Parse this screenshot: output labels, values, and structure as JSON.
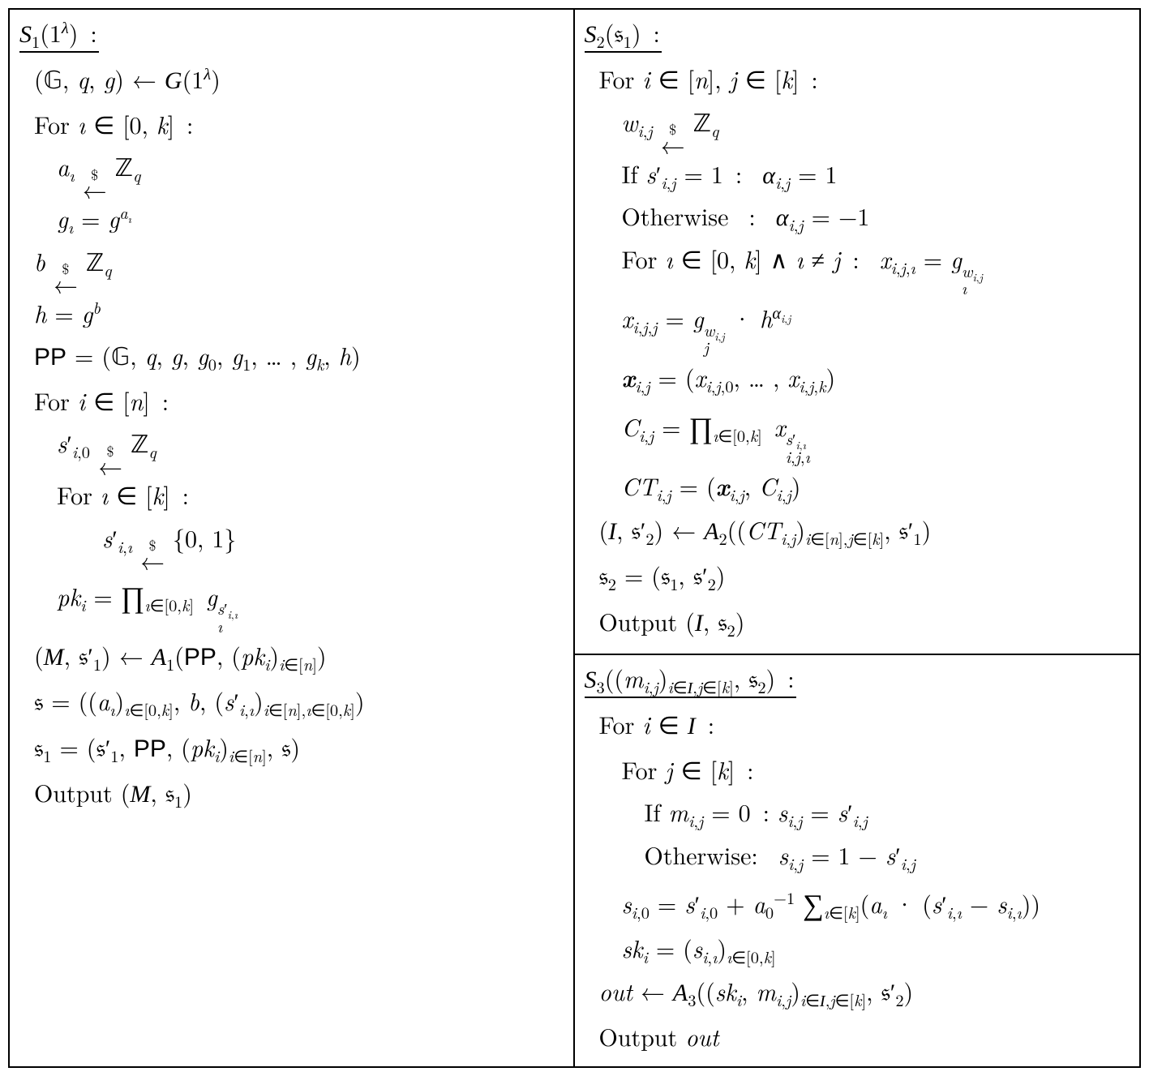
{
  "colors": {
    "border": "#000000",
    "bg": "#ffffff",
    "text": "#000000"
  },
  "fontsize_pt": 30,
  "left": {
    "header": "𝒮₁(1^λ) :",
    "lines": [
      "(&Gopf;, q, g) ← 𝒢(1^λ)",
      "For ı ∈ [0, k] :",
      "a_ı ←$ ℤ_q",
      "g_ı = g^{a_ı}",
      "b ←$ ℤ_q",
      "h = g^b",
      "PP = (&Gopf;, q, g, g₀, g₁, … , g_k, h)",
      "For i ∈ [n] :",
      "s'_{i,0} ←$ ℤ_q",
      "For ı ∈ [k] :",
      "s'_{i,ı} ←$ {0, 1}",
      "pk_i = ∏_{ı∈[0,k]} g_ı^{s'_{i,ı}}",
      "(ℳ, 𝔰'₁) ← 𝒜₁(PP, (pk_i)_{i∈[n]})",
      "𝔰 = ((a_ı)_{ı∈[0,k]}, b, (s'_{i,ı})_{i∈[n], ı∈[0,k]})",
      "𝔰₁ = (𝔰'₁, PP, (pk_i)_{i∈[n]}, 𝔰)",
      "Output (ℳ, 𝔰₁)"
    ]
  },
  "rightTop": {
    "header": "𝒮₂(𝔰₁) :",
    "lines": [
      "For i ∈ [n], j ∈ [k] :",
      "w_{i,j} ←$ ℤ_q",
      "If s'_{i,j} = 1 :  α_{i,j} = 1",
      "Otherwise  :  α_{i,j} = −1",
      "For ı ∈ [0, k] ∧ ı ≠ j :  x_{i,j,ı} = g_ı^{w_{i,j}}",
      "x_{i,j,j} = g_j^{w_{i,j}} · h^{α_{i,j}}",
      "𝒙_{i,j} = (x_{i,j,0}, … , x_{i,j,k})",
      "C_{i,j} = ∏_{ı∈[0,k]} x_{i,j,ı}^{s'_{i,ı}}",
      "CT_{i,j} = (𝒙_{i,j}, C_{i,j})",
      "(ℐ, 𝔰'₂) ← 𝒜₂((CT_{i,j})_{i∈[n], j∈[k]}, 𝔰'₁)",
      "𝔰₂ = (𝔰₁, 𝔰'₂)",
      "Output (ℐ, 𝔰₂)"
    ]
  },
  "rightBottom": {
    "header": "𝒮₃((m_{i,j})_{i∈ℐ, j∈[k]}, 𝔰₂) :",
    "lines": [
      "For i ∈ ℐ :",
      "For j ∈ [k] :",
      "If m_{i,j} = 0 : s_{i,j} = s'_{i,j}",
      "Otherwise:  s_{i,j} = 1 − s'_{i,j}",
      "s_{i,0} = s'_{i,0} + a₀⁻¹ ∑_{ı∈[k]} (a_ı · (s'_{i,ı} − s_{i,ı}))",
      "sk_i = (s_{i,ı})_{ı∈[0,k]}",
      "out ← 𝒜₃((sk_i, m_{i,j})_{i∈ℐ, j∈[k]}, 𝔰'₂)",
      "Output out"
    ]
  }
}
